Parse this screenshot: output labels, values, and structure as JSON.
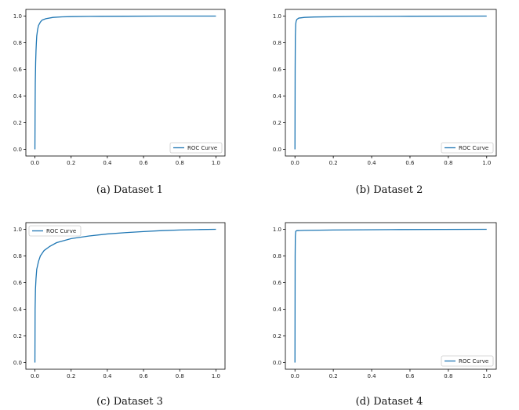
{
  "chart_data": [
    {
      "type": "line",
      "caption": "(a) Dataset 1",
      "legend": {
        "label": "ROC Curve",
        "loc": "lower-right"
      },
      "xlim": [
        0.0,
        1.0
      ],
      "ylim": [
        0.0,
        1.0
      ],
      "xticks": [
        "0.0",
        "0.2",
        "0.4",
        "0.6",
        "0.8",
        "1.0"
      ],
      "yticks": [
        "0.0",
        "0.2",
        "0.4",
        "0.6",
        "0.8",
        "1.0"
      ],
      "color": "#1f77b4",
      "series": [
        {
          "name": "ROC Curve",
          "x": [
            0,
            0.001,
            0.002,
            0.004,
            0.006,
            0.008,
            0.01,
            0.015,
            0.02,
            0.03,
            0.04,
            0.06,
            0.1,
            0.15,
            0.2,
            0.3,
            0.5,
            0.7,
            1.0
          ],
          "y": [
            0,
            0.3,
            0.5,
            0.65,
            0.74,
            0.8,
            0.85,
            0.9,
            0.93,
            0.955,
            0.97,
            0.98,
            0.99,
            0.994,
            0.996,
            0.998,
            0.999,
            1.0,
            1.0
          ]
        }
      ]
    },
    {
      "type": "line",
      "caption": "(b) Dataset 2",
      "legend": {
        "label": "ROC Curve",
        "loc": "lower-right"
      },
      "xlim": [
        0.0,
        1.0
      ],
      "ylim": [
        0.0,
        1.0
      ],
      "xticks": [
        "0.0",
        "0.2",
        "0.4",
        "0.6",
        "0.8",
        "1.0"
      ],
      "yticks": [
        "0.0",
        "0.2",
        "0.4",
        "0.6",
        "0.8",
        "1.0"
      ],
      "color": "#1f77b4",
      "series": [
        {
          "name": "ROC Curve",
          "x": [
            0,
            0.001,
            0.002,
            0.004,
            0.006,
            0.01,
            0.02,
            0.05,
            0.1,
            0.3,
            0.6,
            1.0
          ],
          "y": [
            0,
            0.6,
            0.85,
            0.94,
            0.96,
            0.975,
            0.985,
            0.99,
            0.993,
            0.997,
            0.999,
            1.0
          ]
        }
      ]
    },
    {
      "type": "line",
      "caption": "(c) Dataset 3",
      "legend": {
        "label": "ROC Curve",
        "loc": "upper-left"
      },
      "xlim": [
        0.0,
        1.0
      ],
      "ylim": [
        0.0,
        1.0
      ],
      "xticks": [
        "0.0",
        "0.2",
        "0.4",
        "0.6",
        "0.8",
        "1.0"
      ],
      "yticks": [
        "0.0",
        "0.2",
        "0.4",
        "0.6",
        "0.8",
        "1.0"
      ],
      "color": "#1f77b4",
      "series": [
        {
          "name": "ROC Curve",
          "x": [
            0,
            0.001,
            0.003,
            0.006,
            0.01,
            0.02,
            0.03,
            0.05,
            0.08,
            0.12,
            0.2,
            0.3,
            0.4,
            0.5,
            0.6,
            0.7,
            0.8,
            0.9,
            1.0
          ],
          "y": [
            0,
            0.4,
            0.55,
            0.63,
            0.7,
            0.76,
            0.8,
            0.84,
            0.87,
            0.9,
            0.93,
            0.95,
            0.965,
            0.975,
            0.983,
            0.99,
            0.995,
            0.998,
            1.0
          ]
        }
      ]
    },
    {
      "type": "line",
      "caption": "(d) Dataset 4",
      "legend": {
        "label": "ROC Curve",
        "loc": "lower-right"
      },
      "xlim": [
        0.0,
        1.0
      ],
      "ylim": [
        0.0,
        1.0
      ],
      "xticks": [
        "0.0",
        "0.2",
        "0.4",
        "0.6",
        "0.8",
        "1.0"
      ],
      "yticks": [
        "0.0",
        "0.2",
        "0.4",
        "0.6",
        "0.8",
        "1.0"
      ],
      "color": "#1f77b4",
      "series": [
        {
          "name": "ROC Curve",
          "x": [
            0,
            0.001,
            0.002,
            0.004,
            0.01,
            0.05,
            0.2,
            0.5,
            1.0
          ],
          "y": [
            0,
            0.8,
            0.95,
            0.985,
            0.99,
            0.992,
            0.995,
            0.998,
            1.0
          ]
        }
      ]
    }
  ]
}
